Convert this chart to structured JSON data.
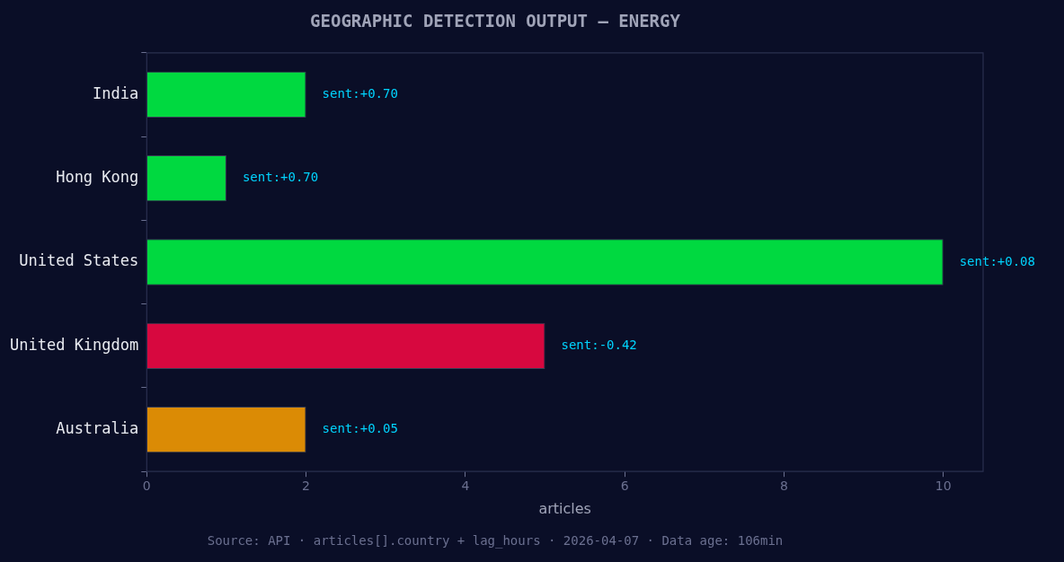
{
  "chart_data": {
    "type": "bar",
    "orientation": "horizontal",
    "title": "GEOGRAPHIC DETECTION OUTPUT — ENERGY",
    "xlabel": "articles",
    "categories": [
      "India",
      "Hong Kong",
      "United States",
      "United Kingdom",
      "Australia"
    ],
    "values": [
      2,
      1,
      10,
      5,
      2
    ],
    "colors": [
      "#00d940",
      "#00d940",
      "#00d940",
      "#d7083f",
      "#db8b05"
    ],
    "xlim": [
      0,
      10.5
    ],
    "xticks": [
      0,
      2,
      4,
      6,
      8,
      10
    ],
    "grid": false,
    "legend": false,
    "annotations": [
      {
        "text": "sent:+0.70",
        "x": 2,
        "y": "India"
      },
      {
        "text": "sent:+0.70",
        "x": 1,
        "y": "Hong Kong"
      },
      {
        "text": "sent:+0.08",
        "x": 10,
        "y": "United States"
      },
      {
        "text": "sent:-0.42",
        "x": 5,
        "y": "United Kingdom"
      },
      {
        "text": "sent:+0.05",
        "x": 2,
        "y": "Australia"
      },
      "Source: API · articles[].country + lag_hours · 2026-04-07 · Data age: 106min"
    ]
  }
}
